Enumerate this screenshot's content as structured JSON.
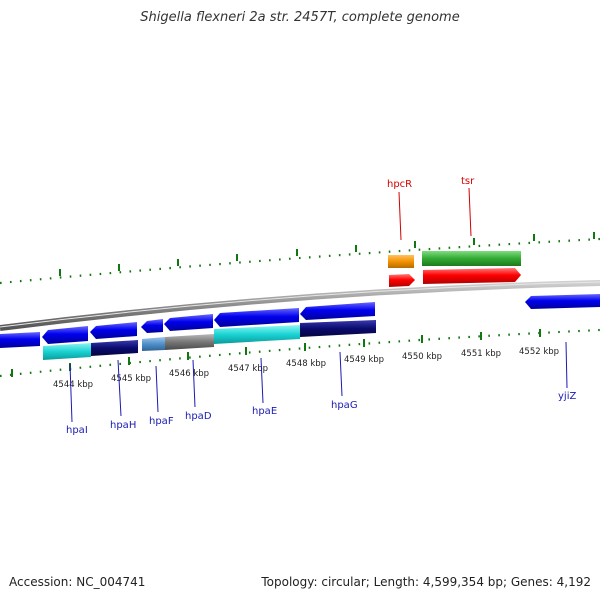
{
  "title": "Shigella flexneri 2a str. 2457T, complete genome",
  "footer": {
    "accession": "Accession: NC_004741",
    "summary": "Topology: circular; Length: 4,599,354 bp; Genes: 4,192"
  },
  "scale_labels": [
    "4544 kbp",
    "4545 kbp",
    "4546 kbp",
    "4547 kbp",
    "4548 kbp",
    "4549 kbp",
    "4550 kbp",
    "4551 kbp",
    "4552 kbp"
  ],
  "genes_top": [
    {
      "name": "hpcR",
      "color": "#d40000"
    },
    {
      "name": "tsr",
      "color": "#d40000"
    }
  ],
  "genes_bottom": [
    {
      "name": "hpaI",
      "color": "#1a1ab3"
    },
    {
      "name": "hpaH",
      "color": "#1a1ab3"
    },
    {
      "name": "hpaF",
      "color": "#1a1ab3"
    },
    {
      "name": "hpaD",
      "color": "#1a1ab3"
    },
    {
      "name": "hpaE",
      "color": "#1a1ab3"
    },
    {
      "name": "hpaG",
      "color": "#1a1ab3"
    },
    {
      "name": "yjiZ",
      "color": "#1a1ab3"
    }
  ],
  "colors": {
    "forward_gene": "#ff0000",
    "forward_cog_green": "#33aa33",
    "forward_cog_orange": "#f39200",
    "reverse_gene": "#0000ee",
    "cog_cyan": "#19d3d3",
    "cog_navy": "#0a0a6e",
    "cog_steel": "#4f8fc9",
    "cog_gray": "#777777",
    "backbone": "#8c8c8c",
    "tick_green": "#117711"
  }
}
